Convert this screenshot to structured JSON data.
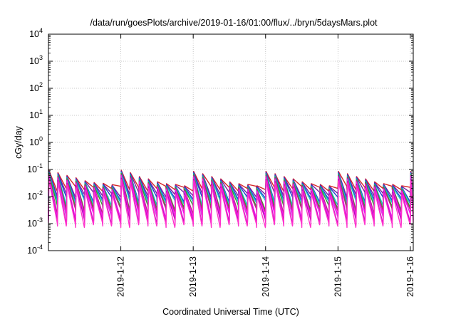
{
  "chart_data": {
    "type": "line",
    "title": "/data/run/goesPlots/archive/2019-01-16/01:00/flux/../bryn/5daysMars.plot",
    "xlabel": "Coordinated Universal Time (UTC)",
    "ylabel": "cGy/day",
    "yscale": "log",
    "ylim": [
      0.0001,
      10000
    ],
    "y_ticks": [
      {
        "base": "10",
        "exp": "4"
      },
      {
        "base": "10",
        "exp": "3"
      },
      {
        "base": "10",
        "exp": "2"
      },
      {
        "base": "10",
        "exp": "1"
      },
      {
        "base": "10",
        "exp": "0"
      },
      {
        "base": "10",
        "exp": "-1"
      },
      {
        "base": "10",
        "exp": "-2"
      },
      {
        "base": "10",
        "exp": "-3"
      },
      {
        "base": "10",
        "exp": "-4"
      }
    ],
    "x_ticks": [
      "2019-1-12",
      "2019-1-13",
      "2019-1-14",
      "2019-1-15",
      "2019-1-16"
    ],
    "xlim_days": [
      11.0,
      16.04
    ],
    "grid": true,
    "pattern": {
      "period_hours": 3,
      "peak_values": [
        0.085,
        0.07,
        0.055,
        0.045,
        0.035,
        0.03,
        0.028,
        0.025
      ],
      "trough_values": [
        0.02,
        0.012,
        0.008,
        0.006,
        0.004,
        0.003,
        0.002,
        0.0015,
        0.0012,
        0.0009
      ]
    },
    "series_colors": [
      "#d62728",
      "#7a1fa2",
      "#1f3fcf",
      "#17becf",
      "#2ca02c",
      "#b03070",
      "#ff00ff",
      "#e040e0",
      "#c000c0",
      "#ff33cc"
    ]
  }
}
